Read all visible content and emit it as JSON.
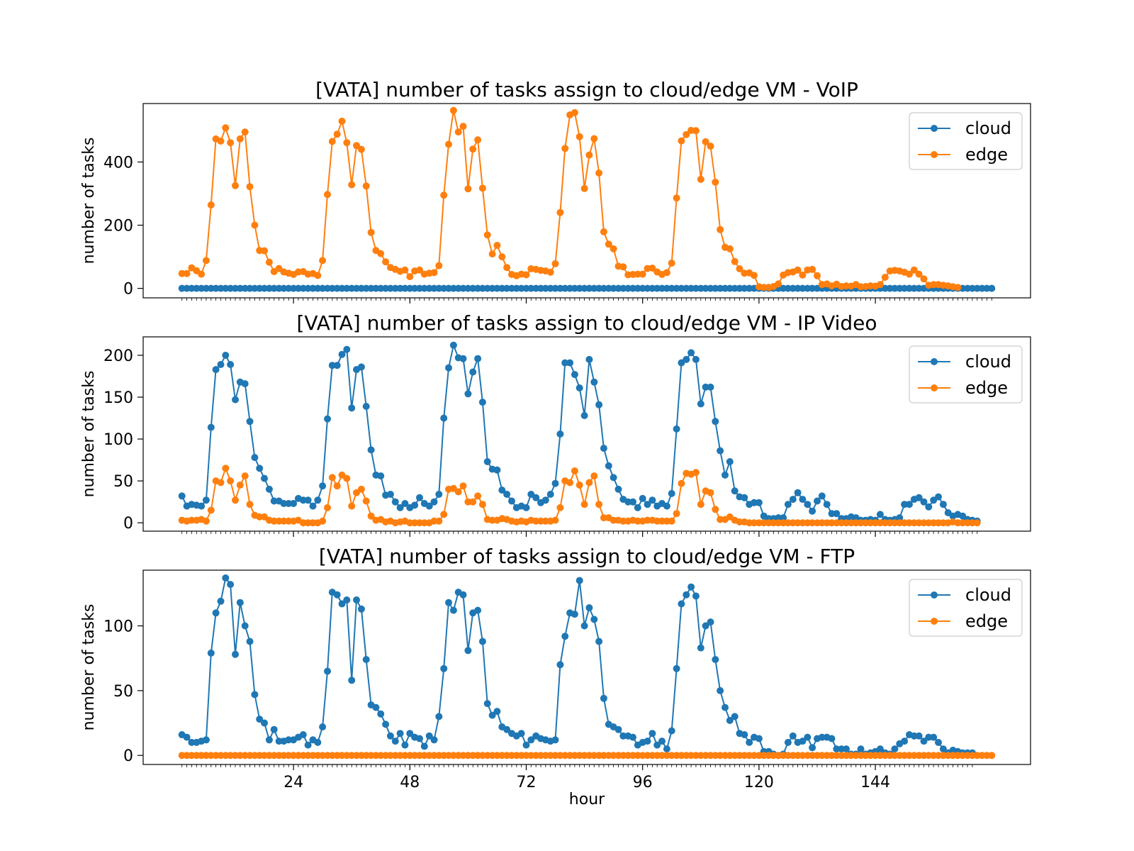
{
  "figure": {
    "xlabel": "hour",
    "xticks": [
      24,
      48,
      72,
      96,
      120,
      144
    ],
    "colors": {
      "cloud": "#1f77b4",
      "edge": "#ff7f0e"
    }
  },
  "chart_data": [
    {
      "type": "line",
      "title": "[VATA] number of tasks assign to cloud/edge VM - VoIP",
      "xlabel": "",
      "ylabel": "number of tasks",
      "ylim": [
        -30,
        585
      ],
      "yticks": [
        0,
        200,
        400
      ],
      "xlim": [
        -7,
        176
      ],
      "legend": "top-right",
      "series": [
        {
          "name": "cloud",
          "color": "#1f77b4",
          "values": [
            0,
            0,
            0,
            0,
            0,
            0,
            0,
            0,
            0,
            0,
            0,
            0,
            0,
            0,
            0,
            0,
            0,
            0,
            0,
            0,
            0,
            0,
            0,
            0,
            0,
            0,
            0,
            0,
            0,
            0,
            0,
            0,
            0,
            0,
            0,
            0,
            0,
            0,
            0,
            0,
            0,
            0,
            0,
            0,
            0,
            0,
            0,
            0,
            0,
            0,
            0,
            0,
            0,
            0,
            0,
            0,
            0,
            0,
            0,
            0,
            0,
            0,
            0,
            0,
            0,
            0,
            0,
            0,
            0,
            0,
            0,
            0,
            0,
            0,
            0,
            0,
            0,
            0,
            0,
            0,
            0,
            0,
            0,
            0,
            0,
            0,
            0,
            0,
            0,
            0,
            0,
            0,
            0,
            0,
            0,
            0,
            0,
            0,
            0,
            0,
            0,
            0,
            0,
            0,
            0,
            0,
            0,
            0,
            0,
            0,
            0,
            0,
            0,
            0,
            0,
            0,
            0,
            0,
            0,
            0,
            0,
            0,
            0,
            0,
            0,
            0,
            0,
            0,
            0,
            0,
            0,
            0,
            0,
            0,
            0,
            0,
            0,
            0,
            0,
            0,
            0,
            0,
            0,
            0,
            0,
            0,
            0,
            0,
            0,
            0,
            0,
            0,
            0,
            0,
            0,
            0,
            0,
            0,
            0,
            0,
            0,
            0,
            0,
            0,
            0,
            0,
            0,
            0
          ]
        },
        {
          "name": "edge",
          "color": "#ff7f0e",
          "values": [
            47,
            47,
            65,
            56,
            45,
            88,
            264,
            473,
            466,
            508,
            461,
            325,
            473,
            495,
            322,
            200,
            120,
            119,
            83,
            53,
            63,
            52,
            48,
            44,
            52,
            53,
            45,
            47,
            41,
            88,
            297,
            465,
            488,
            529,
            461,
            328,
            452,
            440,
            324,
            177,
            120,
            110,
            84,
            66,
            60,
            54,
            58,
            37,
            55,
            58,
            45,
            48,
            50,
            72,
            295,
            456,
            563,
            495,
            513,
            315,
            441,
            470,
            317,
            169,
            109,
            136,
            100,
            66,
            44,
            40,
            45,
            43,
            62,
            60,
            57,
            55,
            51,
            78,
            240,
            443,
            549,
            556,
            480,
            316,
            422,
            474,
            365,
            179,
            140,
            125,
            70,
            68,
            43,
            44,
            45,
            45,
            63,
            64,
            52,
            44,
            50,
            80,
            286,
            467,
            487,
            500,
            499,
            345,
            464,
            450,
            336,
            186,
            130,
            125,
            85,
            62,
            48,
            49,
            41,
            5,
            3,
            3,
            6,
            14,
            42,
            50,
            52,
            58,
            42,
            58,
            60,
            40,
            12,
            14,
            8,
            13,
            6,
            8,
            7,
            12,
            5,
            6,
            8,
            7,
            12,
            35,
            55,
            57,
            55,
            51,
            45,
            58,
            45,
            30,
            10,
            12,
            12,
            10,
            8,
            5,
            3
          ]
        }
      ]
    },
    {
      "type": "line",
      "title": "[VATA] number of tasks assign to cloud/edge VM - IP Video",
      "xlabel": "",
      "ylabel": "number of tasks",
      "ylim": [
        -10,
        222
      ],
      "yticks": [
        0,
        50,
        100,
        150,
        200
      ],
      "xlim": [
        -7,
        176
      ],
      "legend": "top-right",
      "series": [
        {
          "name": "cloud",
          "color": "#1f77b4",
          "values": [
            32,
            20,
            22,
            21,
            20,
            27,
            114,
            183,
            189,
            200,
            189,
            147,
            168,
            166,
            121,
            78,
            65,
            53,
            40,
            26,
            26,
            23,
            23,
            23,
            29,
            27,
            27,
            20,
            27,
            44,
            124,
            188,
            188,
            201,
            207,
            137,
            183,
            186,
            139,
            87,
            57,
            56,
            33,
            34,
            25,
            18,
            23,
            18,
            21,
            30,
            23,
            20,
            25,
            34,
            125,
            185,
            212,
            197,
            196,
            154,
            180,
            196,
            144,
            73,
            64,
            63,
            39,
            34,
            26,
            18,
            20,
            18,
            34,
            30,
            24,
            27,
            34,
            47,
            106,
            191,
            191,
            177,
            161,
            128,
            195,
            168,
            141,
            89,
            68,
            54,
            40,
            28,
            25,
            25,
            18,
            29,
            22,
            27,
            20,
            23,
            20,
            35,
            112,
            191,
            195,
            203,
            195,
            142,
            162,
            162,
            121,
            86,
            57,
            73,
            38,
            31,
            30,
            22,
            24,
            24,
            8,
            5,
            5,
            6,
            6,
            22,
            28,
            36,
            28,
            22,
            14,
            26,
            32,
            22,
            11,
            11,
            5,
            5,
            7,
            6,
            3,
            3,
            4,
            3,
            10,
            4,
            3,
            4,
            6,
            22,
            22,
            28,
            30,
            25,
            19,
            27,
            31,
            22,
            12,
            8,
            10,
            8,
            4,
            3,
            2
          ]
        },
        {
          "name": "edge",
          "color": "#ff7f0e",
          "values": [
            3,
            2,
            3,
            3,
            4,
            2,
            15,
            50,
            48,
            65,
            50,
            27,
            45,
            56,
            22,
            9,
            7,
            7,
            3,
            2,
            2,
            2,
            2,
            2,
            3,
            0,
            0,
            0,
            0,
            2,
            18,
            54,
            44,
            57,
            53,
            20,
            36,
            40,
            26,
            8,
            3,
            4,
            1,
            2,
            0,
            1,
            2,
            0,
            0,
            0,
            0,
            0,
            2,
            2,
            10,
            40,
            41,
            37,
            44,
            25,
            25,
            32,
            22,
            4,
            3,
            3,
            5,
            4,
            2,
            1,
            2,
            1,
            3,
            2,
            2,
            2,
            2,
            3,
            18,
            50,
            48,
            62,
            45,
            22,
            48,
            56,
            22,
            6,
            6,
            3,
            3,
            2,
            2,
            3,
            2,
            2,
            3,
            3,
            2,
            2,
            2,
            2,
            11,
            47,
            59,
            58,
            60,
            22,
            38,
            36,
            16,
            4,
            4,
            7,
            3,
            1,
            1,
            0,
            0,
            0,
            0,
            0,
            0,
            0,
            0,
            0,
            0,
            0,
            0,
            0,
            0,
            0,
            0,
            0,
            0,
            0,
            0,
            0,
            0,
            0,
            0,
            0,
            0,
            0,
            0,
            0,
            0,
            0,
            0,
            0,
            0,
            0,
            0,
            0,
            0,
            0,
            0,
            0,
            0,
            1,
            0,
            0,
            0,
            0,
            0
          ]
        }
      ]
    },
    {
      "type": "line",
      "title": "[VATA] number of tasks assign to cloud/edge VM - FTP",
      "xlabel": "hour",
      "ylabel": "number of tasks",
      "ylim": [
        -7,
        143
      ],
      "yticks": [
        0,
        50,
        100
      ],
      "xlim": [
        -7,
        176
      ],
      "legend": "top-right",
      "series": [
        {
          "name": "cloud",
          "color": "#1f77b4",
          "values": [
            16,
            14,
            10,
            10,
            11,
            12,
            79,
            110,
            119,
            137,
            132,
            78,
            118,
            100,
            88,
            47,
            28,
            25,
            12,
            20,
            11,
            11,
            12,
            12,
            14,
            16,
            8,
            12,
            10,
            22,
            65,
            126,
            124,
            117,
            120,
            58,
            120,
            113,
            74,
            39,
            37,
            32,
            24,
            15,
            11,
            17,
            8,
            17,
            14,
            13,
            7,
            15,
            12,
            30,
            67,
            118,
            112,
            126,
            124,
            81,
            110,
            112,
            88,
            40,
            31,
            34,
            22,
            20,
            17,
            15,
            17,
            8,
            12,
            15,
            13,
            12,
            11,
            12,
            70,
            92,
            110,
            109,
            135,
            100,
            114,
            105,
            88,
            44,
            24,
            22,
            20,
            15,
            15,
            14,
            8,
            10,
            11,
            17,
            8,
            11,
            5,
            19,
            67,
            117,
            124,
            130,
            123,
            83,
            100,
            103,
            74,
            50,
            37,
            27,
            30,
            17,
            16,
            10,
            14,
            13,
            3,
            3,
            1,
            0,
            1,
            10,
            15,
            10,
            11,
            14,
            6,
            13,
            14,
            14,
            13,
            5,
            5,
            5,
            1,
            1,
            5,
            1,
            2,
            3,
            5,
            2,
            1,
            5,
            9,
            11,
            16,
            15,
            15,
            11,
            14,
            14,
            10,
            5,
            2,
            4,
            3,
            2,
            2,
            2
          ]
        },
        {
          "name": "edge",
          "color": "#ff7f0e",
          "values": [
            0,
            0,
            0,
            0,
            0,
            0,
            0,
            0,
            0,
            0,
            0,
            0,
            0,
            0,
            0,
            0,
            0,
            0,
            0,
            0,
            0,
            0,
            0,
            0,
            0,
            0,
            0,
            0,
            0,
            0,
            0,
            0,
            0,
            0,
            0,
            0,
            0,
            0,
            0,
            0,
            0,
            0,
            0,
            0,
            0,
            0,
            0,
            0,
            0,
            0,
            0,
            0,
            0,
            0,
            0,
            0,
            0,
            0,
            0,
            0,
            0,
            0,
            0,
            0,
            0,
            0,
            0,
            0,
            0,
            0,
            0,
            0,
            0,
            0,
            0,
            0,
            0,
            0,
            0,
            0,
            0,
            0,
            0,
            0,
            0,
            0,
            0,
            0,
            0,
            0,
            0,
            0,
            0,
            0,
            0,
            0,
            0,
            0,
            0,
            0,
            0,
            0,
            0,
            0,
            0,
            0,
            0,
            0,
            0,
            0,
            0,
            0,
            0,
            0,
            0,
            0,
            0,
            0,
            0,
            0,
            0,
            0,
            0,
            0,
            0,
            0,
            0,
            0,
            0,
            0,
            0,
            0,
            0,
            0,
            0,
            0,
            0,
            0,
            0,
            0,
            0,
            0,
            0,
            0,
            0,
            0,
            0,
            0,
            0,
            0,
            0,
            0,
            0,
            0,
            0,
            0,
            0,
            0,
            0,
            0,
            0,
            0,
            0,
            0,
            0,
            0,
            0,
            0
          ]
        }
      ]
    }
  ]
}
